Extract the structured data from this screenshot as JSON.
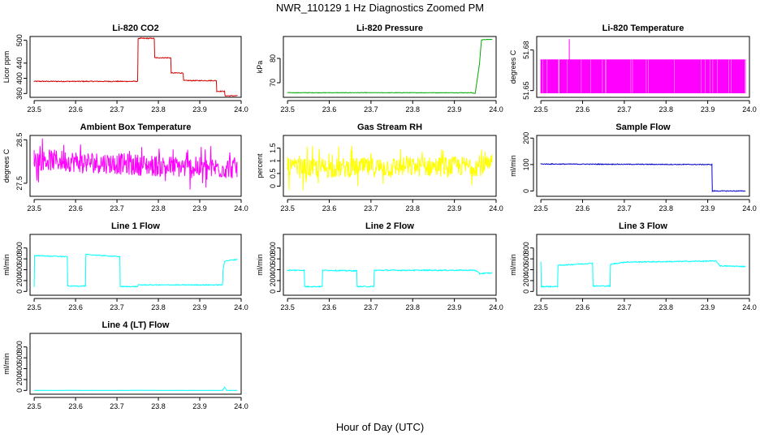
{
  "figure": {
    "title": "NWR_110129  1 Hz Diagnostics Zoomed PM",
    "xlabel": "Hour of Day (UTC)"
  },
  "chart_data": [
    {
      "id": "co2",
      "type": "line",
      "title": "Li-820 CO2",
      "ylabel": "Licor ppm",
      "color": "#d40000",
      "xlim": [
        23.49,
        24.0
      ],
      "xticks": [
        "23.5",
        "23.6",
        "23.7",
        "23.8",
        "23.9",
        "24.0"
      ],
      "ylim": [
        350,
        510
      ],
      "yticks": [
        360,
        400,
        440,
        500
      ],
      "series": [
        {
          "name": "CO2",
          "x": [
            23.5,
            23.75,
            23.751,
            23.79,
            23.791,
            23.83,
            23.831,
            23.86,
            23.861,
            23.94,
            23.941,
            23.96,
            23.961,
            23.99
          ],
          "y": [
            392,
            392,
            505,
            505,
            454,
            454,
            414,
            414,
            394,
            394,
            366,
            366,
            354,
            354
          ],
          "noise": 1.2
        }
      ]
    },
    {
      "id": "pressure",
      "type": "line",
      "title": "Li-820 Pressure",
      "ylabel": "kPa",
      "color": "#00aa00",
      "xlim": [
        23.49,
        24.0
      ],
      "xticks": [
        "23.5",
        "23.6",
        "23.7",
        "23.8",
        "23.9",
        "24.0"
      ],
      "ylim": [
        64,
        89
      ],
      "yticks": [
        70,
        80
      ],
      "series": [
        {
          "name": "Pressure",
          "x": [
            23.5,
            23.94,
            23.95,
            23.96,
            23.965,
            23.98,
            23.99
          ],
          "y": [
            65.9,
            65.9,
            65.6,
            77.5,
            87.6,
            87.8,
            87.8
          ],
          "noise": 0.1
        }
      ]
    },
    {
      "id": "temp820",
      "type": "line",
      "title": "Li-820 Temperature",
      "ylabel": "degrees C",
      "color": "#ff00ff",
      "xlim": [
        23.49,
        24.0
      ],
      "xticks": [
        "23.5",
        "23.6",
        "23.7",
        "23.8",
        "23.9",
        "24.0"
      ],
      "ylim": [
        51.645,
        51.69
      ],
      "yticks": [
        51.65,
        51.68
      ],
      "series": [
        {
          "name": "Temperature",
          "x": [
            23.5,
            23.99
          ],
          "y": [
            51.648,
            51.673
          ],
          "spike": {
            "x": 23.568,
            "y": 51.688
          },
          "noise": 0
        }
      ]
    },
    {
      "id": "boxtemp",
      "type": "line",
      "title": "Ambient Box Temperature",
      "ylabel": "degrees C",
      "color": "#ff00ff",
      "xlim": [
        23.49,
        24.0
      ],
      "xticks": [
        "23.5",
        "23.6",
        "23.7",
        "23.8",
        "23.9",
        "24.0"
      ],
      "ylim": [
        27.2,
        28.6
      ],
      "yticks": [
        27.5,
        28.5
      ],
      "series": [
        {
          "name": "Box Temp",
          "x": [
            23.5,
            23.6,
            23.7,
            23.8,
            23.9,
            23.99
          ],
          "y": [
            28.05,
            28.0,
            27.95,
            27.9,
            27.85,
            27.85
          ],
          "noise": 0.25
        }
      ]
    },
    {
      "id": "rh",
      "type": "line",
      "title": "Gas Stream RH",
      "ylabel": "percent",
      "color": "#ffff00",
      "xlim": [
        23.49,
        24.0
      ],
      "xticks": [
        "23.5",
        "23.6",
        "23.7",
        "23.8",
        "23.9",
        "24.0"
      ],
      "ylim": [
        -0.4,
        2.0
      ],
      "yticks": [
        0.0,
        0.5,
        1.0,
        1.5
      ],
      "series": [
        {
          "name": "RH",
          "x": [
            23.5,
            23.99
          ],
          "y": [
            0.7,
            0.8
          ],
          "noise": 0.4
        }
      ]
    },
    {
      "id": "sample",
      "type": "line",
      "title": "Sample Flow",
      "ylabel": "ml/min",
      "color": "#0000cc",
      "xlim": [
        23.49,
        24.0
      ],
      "xticks": [
        "23.5",
        "23.6",
        "23.7",
        "23.8",
        "23.9",
        "24.0"
      ],
      "ylim": [
        -20,
        210
      ],
      "yticks": [
        0,
        100,
        200
      ],
      "series": [
        {
          "name": "Sample Flow",
          "x": [
            23.5,
            23.91,
            23.911,
            23.99
          ],
          "y": [
            102,
            100,
            0,
            0
          ],
          "noise": 1.5
        }
      ]
    },
    {
      "id": "line1",
      "type": "line",
      "title": "Line 1 Flow",
      "ylabel": "ml/min",
      "color": "#00ffff",
      "xlim": [
        23.49,
        24.0
      ],
      "xticks": [
        "23.5",
        "23.6",
        "23.7",
        "23.8",
        "23.9",
        "24.0"
      ],
      "ylim": [
        -70,
        1050
      ],
      "yticks": [
        0,
        200,
        400,
        600,
        800
      ],
      "series": [
        {
          "name": "Line 1",
          "x": [
            23.5,
            23.501,
            23.58,
            23.581,
            23.624,
            23.625,
            23.707,
            23.708,
            23.75,
            23.751,
            23.955,
            23.956,
            23.96,
            23.99
          ],
          "y": [
            90,
            660,
            640,
            100,
            100,
            680,
            640,
            90,
            90,
            120,
            120,
            380,
            560,
            590
          ],
          "noise": 8
        }
      ]
    },
    {
      "id": "line2",
      "type": "line",
      "title": "Line 2 Flow",
      "ylabel": "ml/min",
      "color": "#00ffff",
      "xlim": [
        23.49,
        24.0
      ],
      "xticks": [
        "23.5",
        "23.6",
        "23.7",
        "23.8",
        "23.9",
        "24.0"
      ],
      "ylim": [
        -70,
        1050
      ],
      "yticks": [
        0,
        200,
        400,
        600,
        800
      ],
      "series": [
        {
          "name": "Line 2",
          "x": [
            23.5,
            23.54,
            23.541,
            23.583,
            23.584,
            23.666,
            23.667,
            23.707,
            23.708,
            23.95,
            23.96,
            23.99
          ],
          "y": [
            390,
            390,
            90,
            90,
            390,
            380,
            90,
            90,
            390,
            390,
            330,
            340
          ],
          "noise": 10
        }
      ]
    },
    {
      "id": "line3",
      "type": "line",
      "title": "Line 3 Flow",
      "ylabel": "ml/min",
      "color": "#00ffff",
      "xlim": [
        23.49,
        24.0
      ],
      "xticks": [
        "23.5",
        "23.6",
        "23.7",
        "23.8",
        "23.9",
        "24.0"
      ],
      "ylim": [
        -70,
        1050
      ],
      "yticks": [
        0,
        200,
        400,
        600,
        800
      ],
      "series": [
        {
          "name": "Line 3",
          "x": [
            23.5,
            23.501,
            23.54,
            23.541,
            23.624,
            23.625,
            23.666,
            23.667,
            23.7,
            23.92,
            23.93,
            23.99
          ],
          "y": [
            540,
            90,
            90,
            480,
            520,
            100,
            100,
            500,
            540,
            560,
            470,
            460
          ],
          "noise": 10
        }
      ]
    },
    {
      "id": "line4",
      "type": "line",
      "title": "Line 4 (LT) Flow",
      "ylabel": "ml/min",
      "color": "#00ffff",
      "xlim": [
        23.49,
        24.0
      ],
      "xticks": [
        "23.5",
        "23.6",
        "23.7",
        "23.8",
        "23.9",
        "24.0"
      ],
      "ylim": [
        -70,
        1050
      ],
      "yticks": [
        0,
        200,
        400,
        600,
        800
      ],
      "series": [
        {
          "name": "Line 4",
          "x": [
            23.5,
            23.955,
            23.96,
            23.965,
            23.99
          ],
          "y": [
            0,
            0,
            60,
            0,
            0
          ],
          "noise": 2
        }
      ]
    }
  ]
}
